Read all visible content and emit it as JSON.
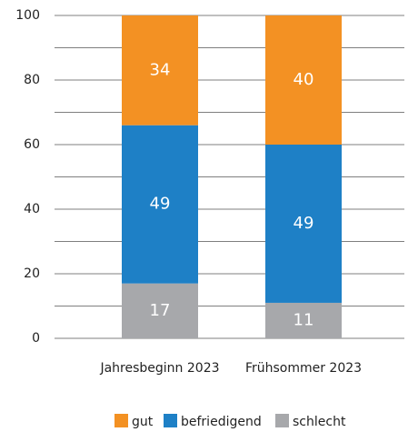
{
  "chart_data": {
    "type": "stacked_bar",
    "categories": [
      "Jahresbeginn 2023",
      "Frühsommer 2023"
    ],
    "series": [
      {
        "name": "gut",
        "color": "#f39123",
        "values": [
          34,
          40
        ]
      },
      {
        "name": "befriedigend",
        "color": "#1e80c6",
        "values": [
          49,
          49
        ]
      },
      {
        "name": "schlecht",
        "color": "#a7a8ab",
        "values": [
          17,
          11
        ]
      }
    ],
    "ylim": [
      0,
      100
    ],
    "yticks": [
      0,
      20,
      40,
      60,
      80,
      100
    ],
    "grid": true,
    "minor_grid": true,
    "legend": "bottom"
  }
}
